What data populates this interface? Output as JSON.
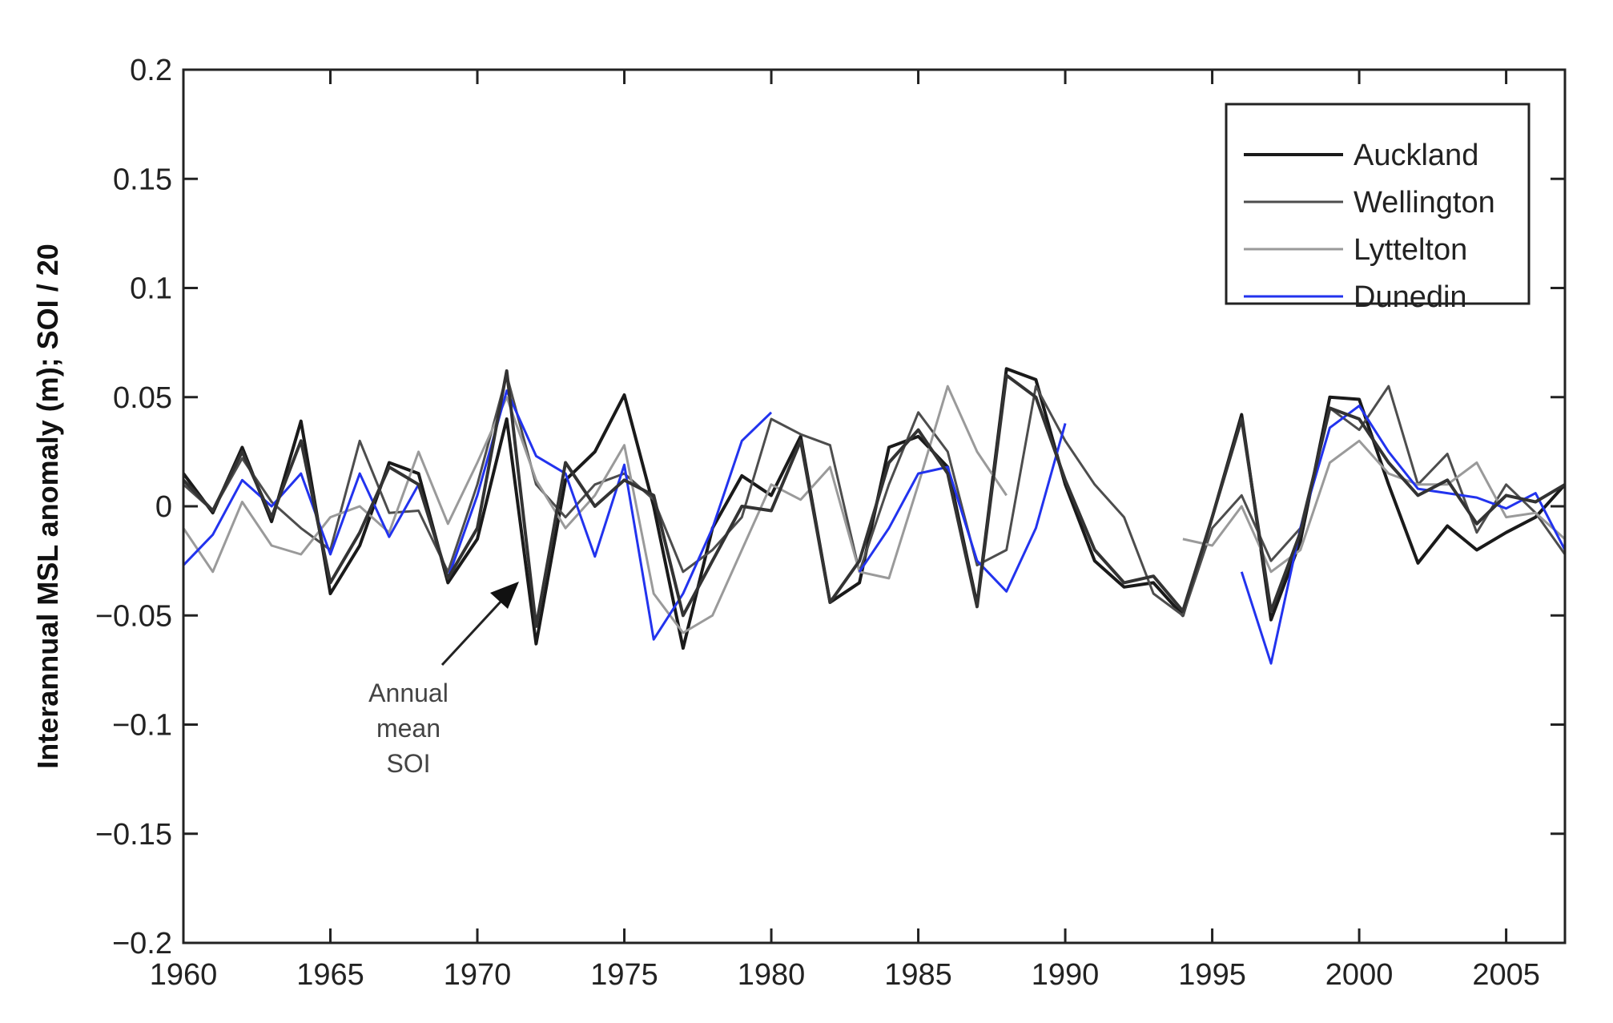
{
  "chart_data": {
    "type": "line",
    "title": "",
    "xlabel": "",
    "ylabel": "Interannual MSL anomaly (m);  SOI / 20",
    "xlim": [
      1960,
      2007
    ],
    "ylim": [
      -0.2,
      0.2
    ],
    "grid": false,
    "x_ticks": [
      "1960",
      "1965",
      "1970",
      "1975",
      "1980",
      "1985",
      "1990",
      "1995",
      "2000",
      "2005"
    ],
    "y_ticks": [
      "0.2",
      "0.15",
      "0.1",
      "0.05",
      "0",
      "−0.05",
      "−0.1",
      "−0.15",
      "−0.2"
    ],
    "legend_position": "top-right",
    "annotation": {
      "lines": [
        "Annual",
        "mean",
        "SOI"
      ],
      "points_to_year": 1972
    },
    "series": [
      {
        "name": "Auckland",
        "color": "#1a1a1a",
        "in_legend": true,
        "x": [
          1960,
          1961,
          1962,
          1963,
          1964,
          1965,
          1966,
          1967,
          1968,
          1969,
          1970,
          1971,
          1972,
          1973,
          1974,
          1975,
          1976,
          1977,
          1978,
          1979,
          1980,
          1981,
          1982,
          1983,
          1984,
          1985,
          1986,
          1987,
          1988,
          1989,
          1990,
          1991,
          1992,
          1993,
          1994,
          1995,
          1996,
          1997,
          1998,
          1999,
          2000,
          2001,
          2002,
          2003,
          2004,
          2005,
          2006,
          2007
        ],
        "values": [
          0.015,
          -0.003,
          0.027,
          -0.007,
          0.039,
          -0.04,
          -0.018,
          0.02,
          0.015,
          -0.035,
          -0.015,
          0.04,
          -0.063,
          0.012,
          0.025,
          0.051,
          0.0,
          -0.065,
          -0.01,
          0.014,
          0.005,
          0.032,
          -0.044,
          -0.035,
          0.027,
          0.032,
          0.018,
          -0.045,
          0.063,
          0.058,
          0.01,
          -0.025,
          -0.037,
          -0.035,
          -0.05,
          -0.005,
          0.042,
          -0.052,
          -0.016,
          0.05,
          0.049,
          0.01,
          -0.026,
          -0.009,
          -0.02,
          -0.012,
          -0.005,
          0.01
        ]
      },
      {
        "name": "Wellington",
        "color": "#4d4d4d",
        "in_legend": true,
        "x": [
          1960,
          1961,
          1962,
          1963,
          1964,
          1965,
          1966,
          1967,
          1968,
          1969,
          1970,
          1971,
          1972,
          1973,
          1974,
          1975,
          1976,
          1977,
          1978,
          1979,
          1980,
          1981,
          1982,
          1983,
          1984,
          1985,
          1986,
          1987,
          1988,
          1989,
          1990,
          1991,
          1992,
          1993,
          1994,
          1995,
          1996,
          1997,
          1998,
          1999,
          2000,
          2001,
          2002,
          2003,
          2004,
          2005,
          2006,
          2007
        ],
        "values": [
          0.01,
          -0.002,
          0.022,
          0.002,
          -0.01,
          -0.02,
          0.03,
          -0.003,
          -0.002,
          -0.03,
          0.01,
          0.06,
          0.01,
          -0.005,
          0.01,
          0.015,
          0.003,
          -0.03,
          -0.02,
          -0.005,
          0.04,
          0.033,
          0.028,
          -0.03,
          0.01,
          0.043,
          0.025,
          -0.027,
          -0.02,
          0.055,
          0.03,
          0.01,
          -0.005,
          -0.04,
          -0.05,
          -0.01,
          0.005,
          -0.025,
          -0.01,
          0.045,
          0.035,
          0.055,
          0.01,
          0.024,
          -0.012,
          0.01,
          -0.003,
          -0.022
        ]
      },
      {
        "name": "Lyttelton",
        "color": "#9a9a9a",
        "in_legend": true,
        "x": [
          1960,
          1961,
          1962,
          1963,
          1964,
          1965,
          1966,
          1967,
          1968,
          1969,
          1970,
          1971,
          1972,
          1973,
          1974,
          1975,
          1976,
          1977,
          1978,
          1979,
          1980,
          1981,
          1982,
          1983,
          1984,
          1985,
          1986,
          1987,
          1988,
          null,
          1994,
          1995,
          1996,
          1997,
          1998,
          1999,
          2000,
          2001,
          2002,
          2003,
          2004,
          2005,
          2006,
          2007
        ],
        "values": [
          -0.01,
          -0.03,
          0.002,
          -0.018,
          -0.022,
          -0.005,
          0.0,
          -0.012,
          0.025,
          -0.008,
          0.02,
          0.05,
          0.012,
          -0.01,
          0.005,
          0.028,
          -0.04,
          -0.058,
          -0.05,
          -0.02,
          0.01,
          0.003,
          0.018,
          -0.03,
          -0.033,
          0.01,
          0.055,
          0.025,
          0.005,
          null,
          -0.015,
          -0.018,
          0.0,
          -0.03,
          -0.02,
          0.02,
          0.03,
          0.015,
          0.01,
          0.01,
          0.02,
          -0.005,
          -0.003,
          -0.015
        ]
      },
      {
        "name": "Dunedin",
        "color": "#2233ee",
        "in_legend": true,
        "x": [
          1960,
          1961,
          1962,
          1963,
          1964,
          1965,
          1966,
          1967,
          1968,
          1969,
          1970,
          1971,
          1972,
          1973,
          1974,
          1975,
          1976,
          1977,
          1978,
          1979,
          1980,
          1981,
          null,
          1983,
          1984,
          1985,
          1986,
          1987,
          1988,
          1989,
          1990,
          null,
          1996,
          1997,
          1998,
          1999,
          2000,
          2001,
          2002,
          2003,
          2004,
          2005,
          2006,
          2007
        ],
        "values": [
          -0.027,
          -0.013,
          0.012,
          0.0,
          0.015,
          -0.022,
          0.015,
          -0.014,
          0.01,
          -0.033,
          0.005,
          0.053,
          0.023,
          0.015,
          -0.023,
          0.019,
          -0.061,
          -0.04,
          -0.01,
          0.03,
          0.043,
          null,
          null,
          -0.03,
          -0.01,
          0.015,
          0.018,
          -0.025,
          -0.039,
          -0.01,
          0.038,
          null,
          -0.03,
          -0.072,
          -0.01,
          0.036,
          0.046,
          0.025,
          0.008,
          0.006,
          0.004,
          -0.001,
          0.006,
          -0.02
        ]
      },
      {
        "name": "Annual mean SOI",
        "color": "#333333",
        "in_legend": false,
        "x": [
          1960,
          1961,
          1962,
          1963,
          1964,
          1965,
          1966,
          1967,
          1968,
          1969,
          1970,
          1971,
          1972,
          1973,
          1974,
          1975,
          1976,
          1977,
          1978,
          1979,
          1980,
          1981,
          1982,
          1983,
          1984,
          1985,
          1986,
          1987,
          1988,
          1989,
          1990,
          1991,
          1992,
          1993,
          1994,
          1995,
          1996,
          1997,
          1998,
          1999,
          2000,
          2001,
          2002,
          2003,
          2004,
          2005,
          2006,
          2007
        ],
        "values": [
          0.012,
          -0.002,
          0.025,
          -0.005,
          0.03,
          -0.035,
          -0.012,
          0.018,
          0.01,
          -0.033,
          -0.01,
          0.062,
          -0.055,
          0.02,
          0.0,
          0.012,
          0.005,
          -0.05,
          -0.025,
          0.0,
          -0.002,
          0.03,
          -0.044,
          -0.025,
          0.02,
          0.035,
          0.015,
          -0.046,
          0.06,
          0.05,
          0.012,
          -0.02,
          -0.035,
          -0.032,
          -0.048,
          -0.005,
          0.04,
          -0.048,
          -0.012,
          0.045,
          0.04,
          0.02,
          0.005,
          0.012,
          -0.008,
          0.005,
          0.002,
          0.01
        ]
      }
    ]
  }
}
